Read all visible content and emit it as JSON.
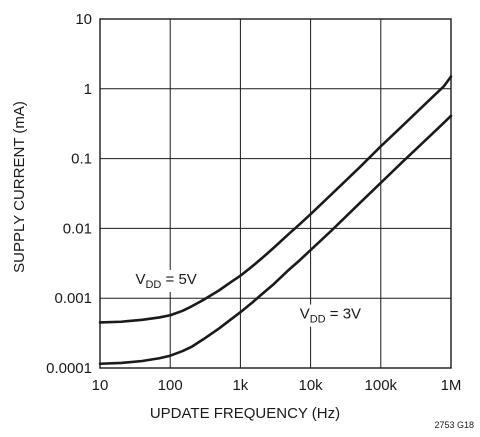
{
  "chart_data": {
    "type": "line",
    "title": "",
    "xlabel": "UPDATE FREQUENCY (Hz)",
    "ylabel": "SUPPLY CURRENT (mA)",
    "x_scale": "log",
    "y_scale": "log",
    "xlim": [
      10,
      1000000
    ],
    "ylim": [
      0.0001,
      10
    ],
    "grid": true,
    "x_ticks": [
      {
        "value": 10,
        "label": "10"
      },
      {
        "value": 100,
        "label": "100"
      },
      {
        "value": 1000,
        "label": "1k"
      },
      {
        "value": 10000,
        "label": "10k"
      },
      {
        "value": 100000,
        "label": "100k"
      },
      {
        "value": 1000000,
        "label": "1M"
      }
    ],
    "y_ticks": [
      {
        "value": 0.0001,
        "label": "0.0001"
      },
      {
        "value": 0.001,
        "label": "0.001"
      },
      {
        "value": 0.01,
        "label": "0.01"
      },
      {
        "value": 0.1,
        "label": "0.1"
      },
      {
        "value": 1,
        "label": "1"
      },
      {
        "value": 10,
        "label": "10"
      }
    ],
    "series": [
      {
        "label_main": "V",
        "label_sub": "DD",
        "label_tail": " = 5V",
        "label_at": {
          "x": 32,
          "y": 0.0016
        },
        "points": [
          [
            10,
            0.00045
          ],
          [
            20,
            0.00046
          ],
          [
            40,
            0.00049
          ],
          [
            70,
            0.00053
          ],
          [
            100,
            0.00057
          ],
          [
            150,
            0.00066
          ],
          [
            200,
            0.00076
          ],
          [
            300,
            0.00095
          ],
          [
            500,
            0.0013
          ],
          [
            700,
            0.00165
          ],
          [
            1000,
            0.0021
          ],
          [
            1500,
            0.0029
          ],
          [
            2000,
            0.0037
          ],
          [
            3000,
            0.0053
          ],
          [
            5000,
            0.0085
          ],
          [
            7000,
            0.0115
          ],
          [
            10000,
            0.016
          ],
          [
            20000,
            0.031
          ],
          [
            50000,
            0.075
          ],
          [
            100000,
            0.15
          ],
          [
            200000,
            0.29
          ],
          [
            500000,
            0.7
          ],
          [
            800000,
            1.1
          ],
          [
            1000000,
            1.5
          ]
        ]
      },
      {
        "label_main": "V",
        "label_sub": "DD",
        "label_tail": " = 3V",
        "label_at": {
          "x": 7000,
          "y": 0.00051
        },
        "points": [
          [
            10,
            0.000115
          ],
          [
            20,
            0.000118
          ],
          [
            40,
            0.000126
          ],
          [
            70,
            0.000138
          ],
          [
            100,
            0.00015
          ],
          [
            150,
            0.000175
          ],
          [
            200,
            0.0002
          ],
          [
            300,
            0.00026
          ],
          [
            500,
            0.00037
          ],
          [
            700,
            0.00048
          ],
          [
            1000,
            0.00063
          ],
          [
            1500,
            0.00088
          ],
          [
            2000,
            0.00113
          ],
          [
            3000,
            0.0016
          ],
          [
            5000,
            0.0026
          ],
          [
            7000,
            0.0035
          ],
          [
            10000,
            0.0049
          ],
          [
            20000,
            0.0094
          ],
          [
            50000,
            0.023
          ],
          [
            100000,
            0.045
          ],
          [
            200000,
            0.088
          ],
          [
            500000,
            0.21
          ],
          [
            800000,
            0.33
          ],
          [
            1000000,
            0.41
          ]
        ]
      }
    ],
    "figure_id": "2753 G18"
  }
}
